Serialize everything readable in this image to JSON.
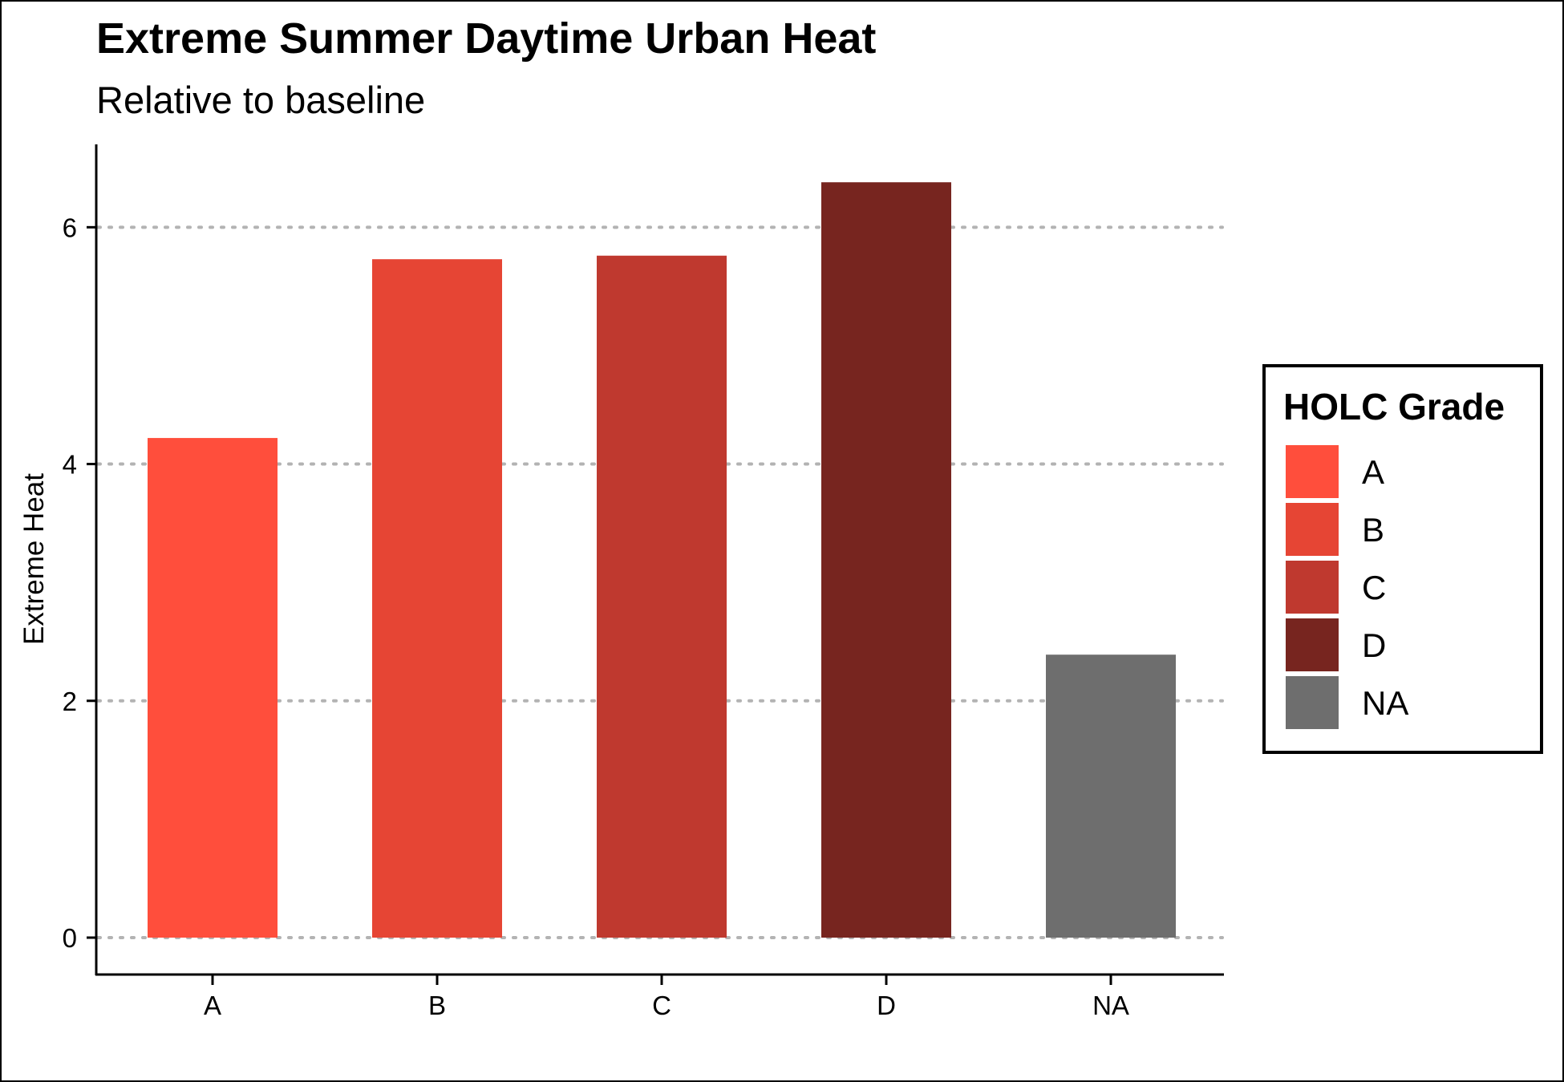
{
  "chart_data": {
    "type": "bar",
    "title": "Extreme Summer Daytime Urban Heat",
    "subtitle": "Relative to baseline",
    "xlabel": "",
    "ylabel": "Extreme Heat",
    "categories": [
      "A",
      "B",
      "C",
      "D",
      "NA"
    ],
    "values": [
      4.22,
      5.73,
      5.76,
      6.38,
      2.39
    ],
    "colors": [
      "#ff4e3c",
      "#e64534",
      "#bf392f",
      "#77251f",
      "#6e6e6e"
    ],
    "ylim": [
      0,
      6.7
    ],
    "yticks": [
      0,
      2,
      4,
      6
    ],
    "grid": "horizontal dotted",
    "legend": {
      "title": "HOLC Grade",
      "placement": "right",
      "items": [
        "A",
        "B",
        "C",
        "D",
        "NA"
      ]
    }
  }
}
